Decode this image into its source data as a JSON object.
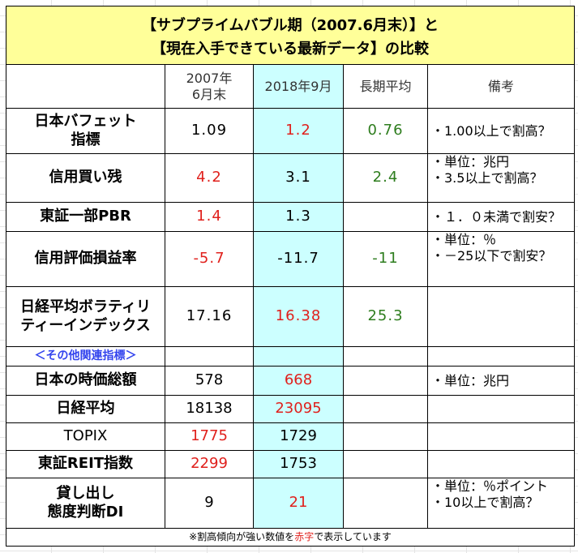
{
  "title": {
    "line1": "【サブプライムバブル期（2007.6月末）】と",
    "line2": "【現在入手できている最新データ】の比較"
  },
  "header": {
    "col0": "",
    "col1_line1": "2007年",
    "col1_line2": "6月末",
    "col2": "2018年9月",
    "col3": "長期平均",
    "col4": "備考"
  },
  "rows": [
    {
      "label1": "日本バフェット",
      "label2": "指標",
      "v2007": "1.09",
      "v2018": "1.2",
      "avg": "0.76",
      "note1": "・1.00以上で割高？",
      "note2": ""
    },
    {
      "label1": "信用買い残",
      "label2": "",
      "v2007": "4.2",
      "v2018": "3.1",
      "avg": "2.4",
      "note1": "・単位：兆円",
      "note2": "・3.5以上で割高？"
    },
    {
      "label1": "東証一部PBR",
      "label2": "",
      "v2007": "1.4",
      "v2018": "1.3",
      "avg": "",
      "note1": "・１．０未満で割安？",
      "note2": ""
    },
    {
      "label1": "信用評価損益率",
      "label2": "",
      "v2007": "-5.7",
      "v2018": "-11.7",
      "avg": "-11",
      "note1": "・単位：％",
      "note2": "・－25以下で割安？"
    },
    {
      "label1": "日経平均ボラティリ",
      "label2": "ティーインデックス",
      "v2007": "17.16",
      "v2018": "16.38",
      "avg": "25.3",
      "note1": "",
      "note2": ""
    }
  ],
  "section_label": "＜その他関連指標＞",
  "other_rows": [
    {
      "label1": "日本の時価総額",
      "label2": "",
      "v2007": "578",
      "v2018": "668",
      "avg": "",
      "note1": "・単位：兆円",
      "note2": ""
    },
    {
      "label1": "日経平均",
      "label2": "",
      "v2007": "18138",
      "v2018": "23095",
      "avg": "",
      "note1": "",
      "note2": ""
    },
    {
      "label1": "TOPIX",
      "label2": "",
      "v2007": "1775",
      "v2018": "1729",
      "avg": "",
      "note1": "",
      "note2": ""
    },
    {
      "label1": "東証REIT指数",
      "label2": "",
      "v2007": "2299",
      "v2018": "1753",
      "avg": "",
      "note1": "",
      "note2": ""
    },
    {
      "label1": "貸し出し",
      "label2": "態度判断DI",
      "v2007": "9",
      "v2018": "21",
      "avg": "",
      "note1": "・単位：％ポイント",
      "note2": "・10以上で割高？"
    }
  ],
  "footnote": {
    "before": "※割高傾向が強い数値を",
    "highlight": "赤字",
    "after": "で表示しています"
  },
  "colors": {
    "title_bg": "#ffff99",
    "highlight_col": "#ccffff",
    "red": "#e0201c",
    "green": "#2e7d1e",
    "section_blue": "#3344ee"
  }
}
